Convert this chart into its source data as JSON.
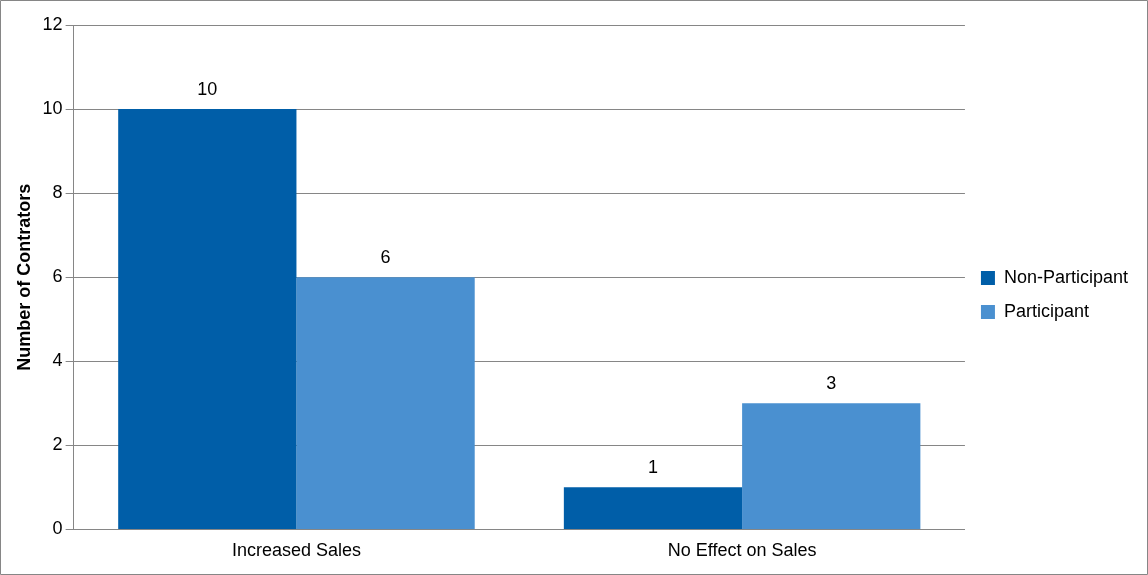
{
  "chart_data": {
    "type": "bar",
    "ylabel": "Number of Contrators",
    "categories": [
      "Increased Sales",
      "No Effect on Sales"
    ],
    "series": [
      {
        "name": "Non-Participant",
        "color": "#005ea8",
        "values": [
          10,
          1
        ]
      },
      {
        "name": "Participant",
        "color": "#4a90d0",
        "values": [
          6,
          3
        ]
      }
    ],
    "ylim": [
      0,
      12
    ],
    "yticks": [
      0,
      2,
      4,
      6,
      8,
      10,
      12
    ],
    "grid": "y",
    "legend": "right",
    "data_labels": true
  }
}
